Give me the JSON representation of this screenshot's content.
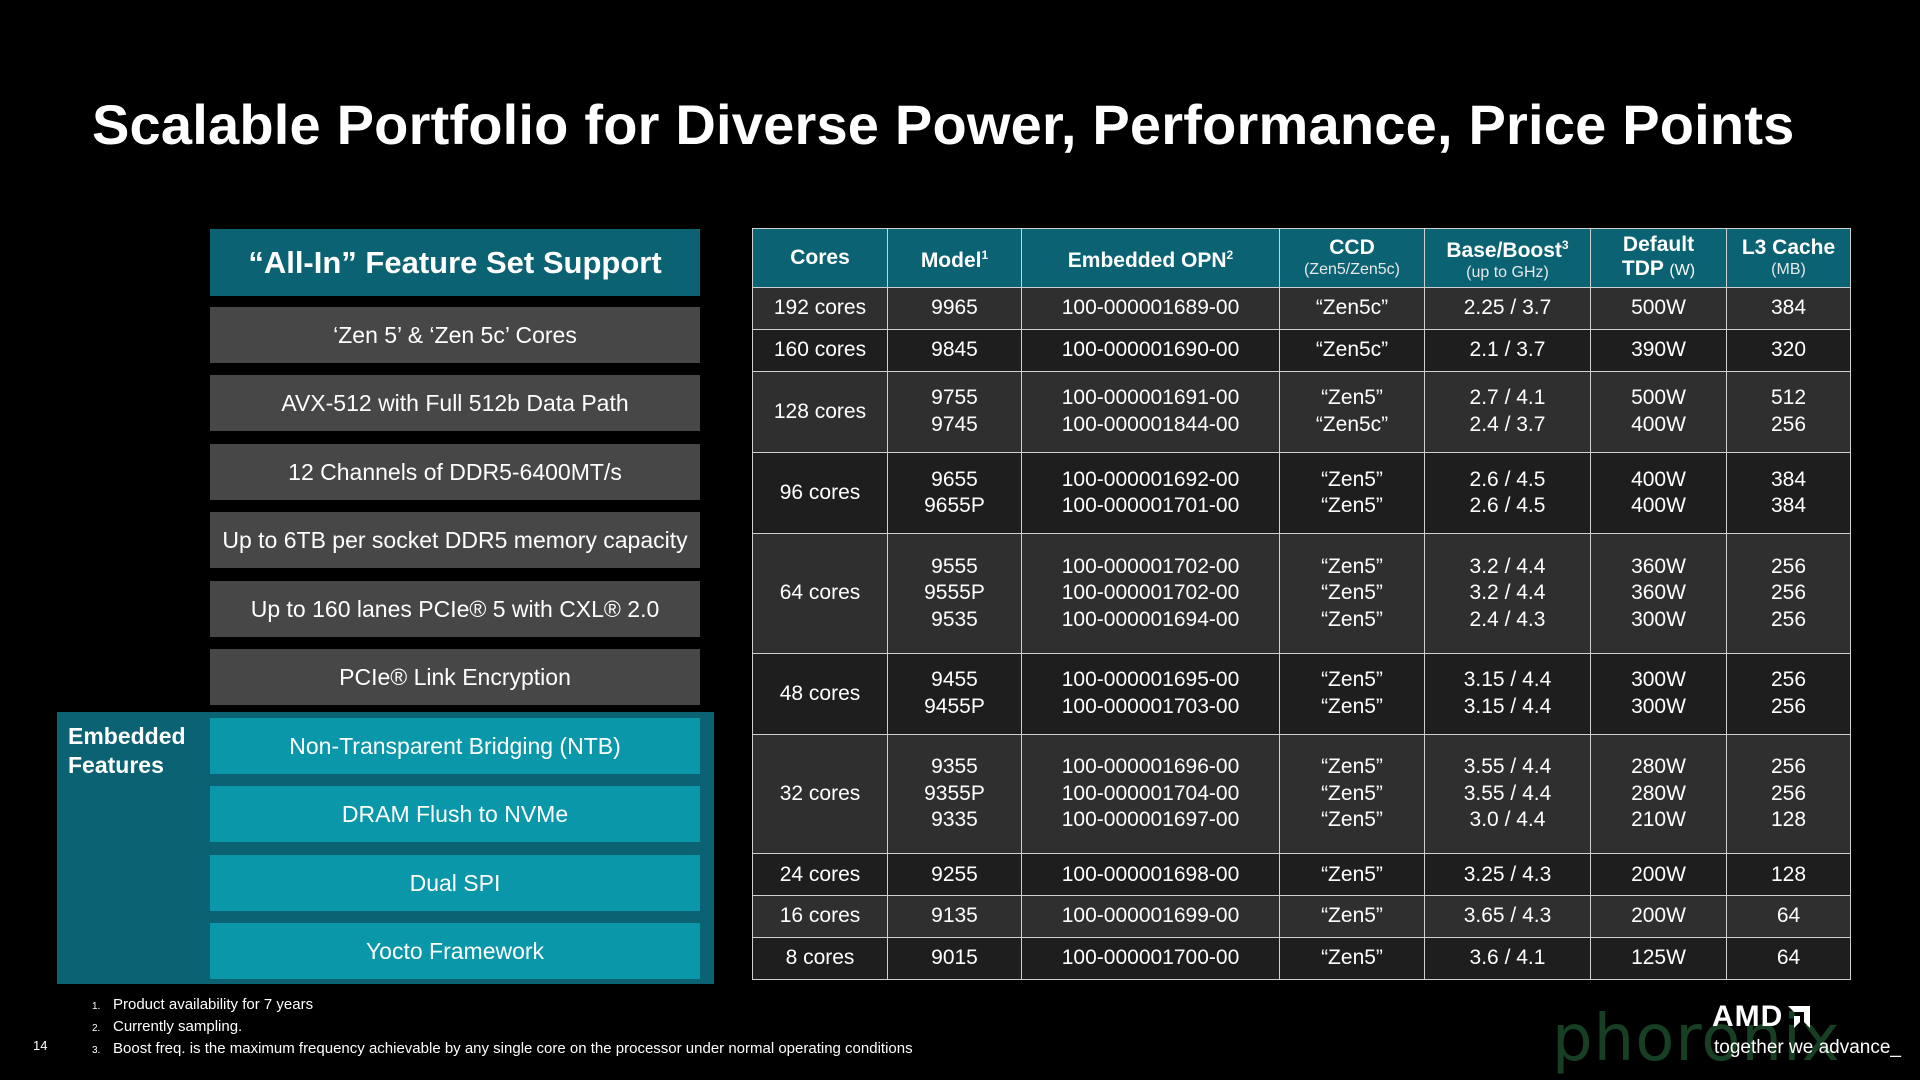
{
  "title": "Scalable Portfolio for Diverse Power, Performance, Price Points",
  "features": {
    "header": "“All-In” Feature Set Support",
    "items": [
      "‘Zen 5’ & ‘Zen 5c’ Cores",
      "AVX-512 with Full 512b Data Path",
      "12 Channels of DDR5-6400MT/s",
      "Up to 6TB per socket DDR5 memory capacity",
      "Up to 160 lanes PCIe® 5 with CXL® 2.0",
      "PCIe® Link Encryption"
    ],
    "embedded_label": "Embedded\nFeatures",
    "embedded_items": [
      "Non-Transparent Bridging (NTB)",
      "DRAM Flush to NVMe",
      "Dual SPI",
      "Yocto Framework"
    ]
  },
  "table": {
    "headers": {
      "cores": "Cores",
      "model": "Model",
      "model_sup": "1",
      "opn": "Embedded OPN",
      "opn_sup": "2",
      "ccd": "CCD",
      "ccd_sub": "(Zen5/Zen5c)",
      "boost": "Base/Boost",
      "boost_sup": "3",
      "boost_sub": "(up to GHz)",
      "tdp": "Default",
      "tdp_line2": "TDP",
      "tdp_unit": "(W)",
      "l3": "L3 Cache",
      "l3_sub": "(MB)"
    },
    "rows": [
      {
        "cores": "192 cores",
        "model": [
          "9965"
        ],
        "opn": [
          "100-000001689-00"
        ],
        "ccd": [
          "“Zen5c”"
        ],
        "freq": [
          "2.25 / 3.7"
        ],
        "tdp": [
          "500W"
        ],
        "l3": [
          "384"
        ]
      },
      {
        "cores": "160 cores",
        "model": [
          "9845"
        ],
        "opn": [
          "100-000001690-00"
        ],
        "ccd": [
          "“Zen5c”"
        ],
        "freq": [
          "2.1 / 3.7"
        ],
        "tdp": [
          "390W"
        ],
        "l3": [
          "320"
        ]
      },
      {
        "cores": "128 cores",
        "model": [
          "9755",
          "9745"
        ],
        "opn": [
          "100-000001691-00",
          "100-000001844-00"
        ],
        "ccd": [
          "“Zen5”",
          "“Zen5c”"
        ],
        "freq": [
          "2.7 / 4.1",
          "2.4 / 3.7"
        ],
        "tdp": [
          "500W",
          "400W"
        ],
        "l3": [
          "512",
          "256"
        ]
      },
      {
        "cores": "96 cores",
        "model": [
          "9655",
          "9655P"
        ],
        "opn": [
          "100-000001692-00",
          "100-000001701-00"
        ],
        "ccd": [
          "“Zen5”",
          "“Zen5”"
        ],
        "freq": [
          "2.6 / 4.5",
          "2.6 / 4.5"
        ],
        "tdp": [
          "400W",
          "400W"
        ],
        "l3": [
          "384",
          "384"
        ]
      },
      {
        "cores": "64 cores",
        "model": [
          "9555",
          "9555P",
          "9535"
        ],
        "opn": [
          "100-000001702-00",
          "100-000001702-00",
          "100-000001694-00"
        ],
        "ccd": [
          "“Zen5”",
          "“Zen5”",
          "“Zen5”"
        ],
        "freq": [
          "3.2 / 4.4",
          "3.2 / 4.4",
          "2.4 / 4.3"
        ],
        "tdp": [
          "360W",
          "360W",
          "300W"
        ],
        "l3": [
          "256",
          "256",
          "256"
        ]
      },
      {
        "cores": "48 cores",
        "model": [
          "9455",
          "9455P"
        ],
        "opn": [
          "100-000001695-00",
          "100-000001703-00"
        ],
        "ccd": [
          "“Zen5”",
          "“Zen5”"
        ],
        "freq": [
          "3.15 / 4.4",
          "3.15 / 4.4"
        ],
        "tdp": [
          "300W",
          "300W"
        ],
        "l3": [
          "256",
          "256"
        ]
      },
      {
        "cores": "32 cores",
        "model": [
          "9355",
          "9355P",
          "9335"
        ],
        "opn": [
          "100-000001696-00",
          "100-000001704-00",
          "100-000001697-00"
        ],
        "ccd": [
          "“Zen5”",
          "“Zen5”",
          "“Zen5”"
        ],
        "freq": [
          "3.55 / 4.4",
          "3.55 / 4.4",
          "3.0 / 4.4"
        ],
        "tdp": [
          "280W",
          "280W",
          "210W"
        ],
        "l3": [
          "256",
          "256",
          "128"
        ]
      },
      {
        "cores": "24 cores",
        "model": [
          "9255"
        ],
        "opn": [
          "100-000001698-00"
        ],
        "ccd": [
          "“Zen5”"
        ],
        "freq": [
          "3.25 / 4.3"
        ],
        "tdp": [
          "200W"
        ],
        "l3": [
          "128"
        ]
      },
      {
        "cores": "16 cores",
        "model": [
          "9135"
        ],
        "opn": [
          "100-000001699-00"
        ],
        "ccd": [
          "“Zen5”"
        ],
        "freq": [
          "3.65 / 4.3"
        ],
        "tdp": [
          "200W"
        ],
        "l3": [
          "64"
        ]
      },
      {
        "cores": "8 cores",
        "model": [
          "9015"
        ],
        "opn": [
          "100-000001700-00"
        ],
        "ccd": [
          "“Zen5”"
        ],
        "freq": [
          "3.6 / 4.1"
        ],
        "tdp": [
          "125W"
        ],
        "l3": [
          "64"
        ]
      }
    ]
  },
  "footnotes": [
    {
      "num": "1.",
      "text": "Product availability for 7 years"
    },
    {
      "num": "2.",
      "text": "Currently sampling."
    },
    {
      "num": "3.",
      "text": "Boost freq. is the maximum frequency achievable by any single core on the processor under normal operating conditions"
    }
  ],
  "page_number": "14",
  "logo": {
    "brand": "AMD",
    "icon": "amd-arrow-icon",
    "tagline": "together we advance_"
  },
  "watermark": "phoronix",
  "colors": {
    "header_teal": "#0b6272",
    "embedded_teal": "#0a97aa",
    "feature_gray": "#474747",
    "background": "#000000"
  }
}
